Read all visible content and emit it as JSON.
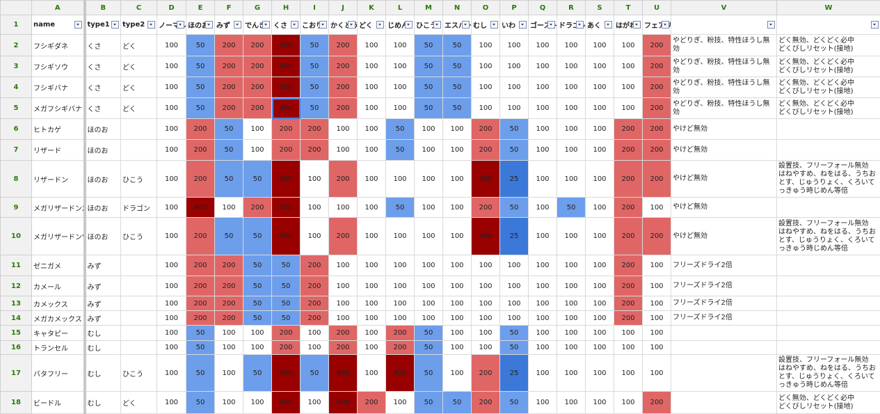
{
  "table": {
    "column_letters": [
      "A",
      "B",
      "C",
      "D",
      "E",
      "F",
      "G",
      "H",
      "I",
      "J",
      "K",
      "L",
      "M",
      "N",
      "O",
      "P",
      "Q",
      "R",
      "S",
      "T",
      "U",
      "V",
      "W"
    ],
    "row_numbers": [
      1,
      2,
      3,
      4,
      5,
      6,
      7,
      8,
      9,
      10,
      11,
      12,
      13,
      14,
      15,
      16,
      17,
      18
    ],
    "header": [
      "name",
      "type1",
      "type2",
      "ノーマル",
      "ほのお",
      "みず",
      "でんき",
      "くさ",
      "こおり",
      "かくとう",
      "どく",
      "じめん",
      "ひこう",
      "エスパー",
      "むし",
      "いわ",
      "ゴースト",
      "ドラゴン",
      "あく",
      "はがね",
      "フェアリー"
    ],
    "cell_colors": [
      {
        "value": 25,
        "color": "#3c78d8"
      },
      {
        "value": 50,
        "color": "#6d9eeb"
      },
      {
        "value": 200,
        "color": "#e06666"
      },
      {
        "value": 400,
        "color": "#990000"
      }
    ],
    "rows": [
      [
        "フシギダネ",
        "くさ",
        "どく",
        100,
        50,
        200,
        200,
        400,
        50,
        200,
        100,
        100,
        50,
        50,
        100,
        100,
        100,
        100,
        100,
        100,
        200,
        "やどりぎ、粉技、特性ほうし無効",
        "どく無効、どくどく必中\nどくびしリセット(接地)"
      ],
      [
        "フシギソウ",
        "くさ",
        "どく",
        100,
        50,
        200,
        200,
        400,
        50,
        200,
        100,
        100,
        50,
        50,
        100,
        100,
        100,
        100,
        100,
        100,
        200,
        "やどりぎ、粉技、特性ほうし無効",
        "どく無効、どくどく必中\nどくびしリセット(接地)"
      ],
      [
        "フシギバナ",
        "くさ",
        "どく",
        100,
        50,
        200,
        200,
        400,
        50,
        200,
        100,
        100,
        50,
        50,
        100,
        100,
        100,
        100,
        100,
        100,
        200,
        "やどりぎ、粉技、特性ほうし無効",
        "どく無効、どくどく必中\nどくびしリセット(接地)"
      ],
      [
        "メガフシギバナ",
        "くさ",
        "どく",
        100,
        50,
        200,
        200,
        400,
        50,
        200,
        100,
        100,
        50,
        50,
        100,
        100,
        100,
        100,
        100,
        100,
        200,
        "やどりぎ、粉技、特性ほうし無効",
        "どく無効、どくどく必中\nどくびしリセット(接地)"
      ],
      [
        "ヒトカゲ",
        "ほのお",
        null,
        100,
        200,
        50,
        100,
        200,
        200,
        100,
        100,
        50,
        100,
        100,
        200,
        50,
        100,
        100,
        100,
        200,
        200,
        "やけど無効",
        null
      ],
      [
        "リザード",
        "ほのお",
        null,
        100,
        200,
        50,
        100,
        200,
        200,
        100,
        100,
        50,
        100,
        100,
        200,
        50,
        100,
        100,
        100,
        200,
        200,
        "やけど無効",
        null
      ],
      [
        "リザードン",
        "ほのお",
        "ひこう",
        100,
        200,
        50,
        50,
        400,
        100,
        200,
        100,
        100,
        100,
        100,
        400,
        25,
        100,
        100,
        100,
        200,
        200,
        "やけど無効",
        "設置技、フリーフォール無効\nはねやすめ、ねをはる、うちおとす、じゅうりょく、くろいてっきゅう時じめん等倍"
      ],
      [
        "メガリザードンX",
        "ほのお",
        "ドラゴン",
        100,
        400,
        100,
        200,
        400,
        100,
        100,
        100,
        50,
        100,
        100,
        200,
        50,
        100,
        50,
        100,
        200,
        100,
        "やけど無効",
        null
      ],
      [
        "メガリザードンY",
        "ほのお",
        "ひこう",
        100,
        200,
        50,
        50,
        400,
        100,
        200,
        100,
        100,
        100,
        100,
        400,
        25,
        100,
        100,
        100,
        200,
        200,
        "やけど無効",
        "設置技、フリーフォール無効\nはねやすめ、ねをはる、うちおとす、じゅうりょく、くろいてっきゅう時じめん等倍"
      ],
      [
        "ゼニガメ",
        "みず",
        null,
        100,
        200,
        200,
        50,
        50,
        200,
        100,
        100,
        100,
        100,
        100,
        100,
        100,
        100,
        100,
        100,
        200,
        100,
        "フリーズドライ2倍",
        null
      ],
      [
        "カメール",
        "みず",
        null,
        100,
        200,
        200,
        50,
        50,
        200,
        100,
        100,
        100,
        100,
        100,
        100,
        100,
        100,
        100,
        100,
        200,
        100,
        "フリーズドライ2倍",
        null
      ],
      [
        "カメックス",
        "みず",
        null,
        100,
        200,
        200,
        50,
        50,
        200,
        100,
        100,
        100,
        100,
        100,
        100,
        100,
        100,
        100,
        100,
        200,
        100,
        "フリーズドライ2倍",
        null
      ],
      [
        "メガカメックス",
        "みず",
        null,
        100,
        200,
        200,
        50,
        50,
        200,
        100,
        100,
        100,
        100,
        100,
        100,
        100,
        100,
        100,
        100,
        200,
        100,
        "フリーズドライ2倍",
        null
      ],
      [
        "キャタピー",
        "むし",
        null,
        100,
        50,
        100,
        100,
        200,
        100,
        200,
        100,
        200,
        50,
        100,
        100,
        50,
        100,
        100,
        100,
        100,
        100,
        null,
        null
      ],
      [
        "トランセル",
        "むし",
        null,
        100,
        50,
        100,
        100,
        200,
        100,
        200,
        100,
        200,
        50,
        100,
        100,
        50,
        100,
        100,
        100,
        100,
        100,
        null,
        null
      ],
      [
        "バタフリー",
        "むし",
        "ひこう",
        100,
        50,
        100,
        50,
        400,
        50,
        400,
        100,
        400,
        50,
        100,
        200,
        25,
        100,
        100,
        100,
        100,
        100,
        null,
        "設置技、フリーフォール無効\nはねやすめ、ねをはる、うちおとす、じゅうりょく、くろいてっきゅう時じめん等倍"
      ],
      [
        "ビードル",
        "むし",
        "どく",
        100,
        50,
        100,
        100,
        400,
        100,
        400,
        200,
        100,
        50,
        50,
        200,
        50,
        100,
        100,
        100,
        100,
        200,
        null,
        "どく無効、どくどく必中\nどくびしリセット(接地)"
      ]
    ]
  }
}
